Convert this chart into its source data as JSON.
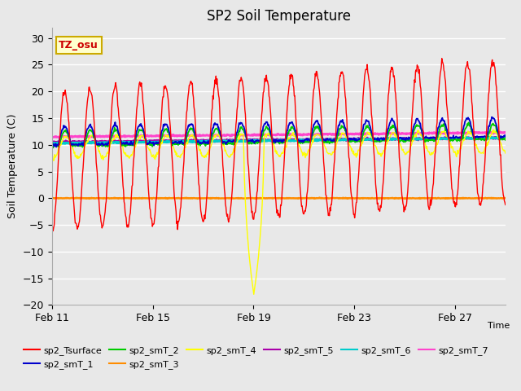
{
  "title": "SP2 Soil Temperature",
  "ylabel": "Soil Temperature (C)",
  "xlabel_right": "Time",
  "ylim": [
    -20,
    32
  ],
  "yticks": [
    -20,
    -15,
    -10,
    -5,
    0,
    5,
    10,
    15,
    20,
    25,
    30
  ],
  "xtick_labels": [
    "Feb 11",
    "Feb 15",
    "Feb 19",
    "Feb 23",
    "Feb 27"
  ],
  "xtick_positions": [
    0,
    4,
    8,
    12,
    16
  ],
  "xlim": [
    0,
    18
  ],
  "annotation_text": "TZ_osu",
  "annotation_color": "#cc0000",
  "annotation_bg": "#ffffcc",
  "annotation_border": "#ccaa00",
  "fig_bg": "#e8e8e8",
  "plot_bg": "#e8e8e8",
  "grid_color": "#ffffff",
  "series_colors": {
    "sp2_Tsurface": "#ff0000",
    "sp2_smT_1": "#0000cc",
    "sp2_smT_2": "#00cc00",
    "sp2_smT_3": "#ff8c00",
    "sp2_smT_4": "#ffff00",
    "sp2_smT_5": "#aa00aa",
    "sp2_smT_6": "#00cccc",
    "sp2_smT_7": "#ff44cc"
  },
  "n_days": 18,
  "ppd": 48
}
